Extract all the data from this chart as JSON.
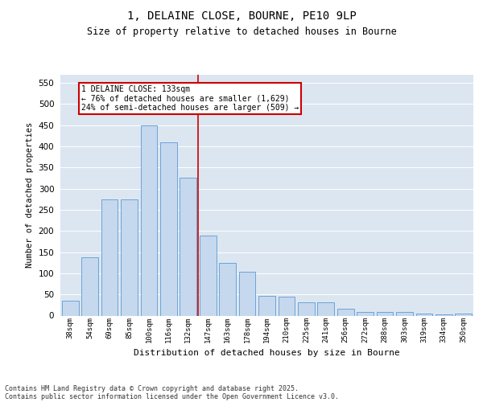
{
  "title_line1": "1, DELAINE CLOSE, BOURNE, PE10 9LP",
  "title_line2": "Size of property relative to detached houses in Bourne",
  "xlabel": "Distribution of detached houses by size in Bourne",
  "ylabel": "Number of detached properties",
  "bar_labels": [
    "38sqm",
    "54sqm",
    "69sqm",
    "85sqm",
    "100sqm",
    "116sqm",
    "132sqm",
    "147sqm",
    "163sqm",
    "178sqm",
    "194sqm",
    "210sqm",
    "225sqm",
    "241sqm",
    "256sqm",
    "272sqm",
    "288sqm",
    "303sqm",
    "319sqm",
    "334sqm",
    "350sqm"
  ],
  "bar_values": [
    35,
    137,
    275,
    275,
    450,
    410,
    325,
    190,
    125,
    103,
    47,
    45,
    32,
    32,
    16,
    8,
    8,
    9,
    5,
    3,
    5
  ],
  "bar_color": "#c5d8ed",
  "bar_edge_color": "#5b9bd5",
  "vline_x_index": 6,
  "vline_color": "#cc0000",
  "annotation_title": "1 DELAINE CLOSE: 133sqm",
  "annotation_line1": "← 76% of detached houses are smaller (1,629)",
  "annotation_line2": "24% of semi-detached houses are larger (509) →",
  "annotation_box_color": "#cc0000",
  "ylim": [
    0,
    570
  ],
  "yticks": [
    0,
    50,
    100,
    150,
    200,
    250,
    300,
    350,
    400,
    450,
    500,
    550
  ],
  "plot_bg_color": "#dce6f1",
  "footer_line1": "Contains HM Land Registry data © Crown copyright and database right 2025.",
  "footer_line2": "Contains public sector information licensed under the Open Government Licence v3.0."
}
